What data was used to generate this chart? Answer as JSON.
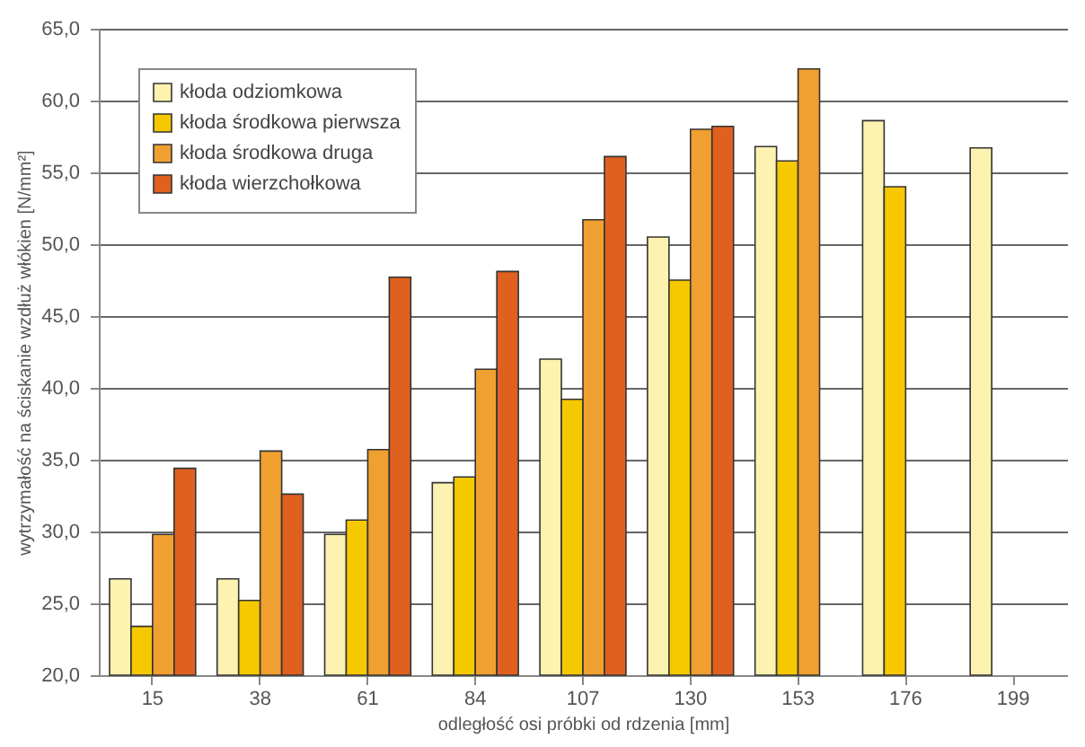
{
  "chart_data": {
    "type": "bar",
    "xlabel": "odległość osi próbki od rdzenia [mm]",
    "ylabel": "wytrzymałość na ściskanie wzdłuż włókien [N/mm²]",
    "categories": [
      "15",
      "38",
      "61",
      "84",
      "107",
      "130",
      "153",
      "176",
      "199"
    ],
    "series": [
      {
        "name": "kłoda odziomkowa",
        "color": "#fdf2b0",
        "values": [
          26.7,
          26.7,
          29.8,
          33.4,
          42.0,
          50.5,
          56.8,
          58.6,
          56.7
        ]
      },
      {
        "name": "kłoda środkowa pierwsza",
        "color": "#f5c800",
        "values": [
          23.4,
          25.2,
          30.8,
          33.8,
          39.2,
          47.5,
          55.8,
          54.0,
          null
        ]
      },
      {
        "name": "kłoda środkowa druga",
        "color": "#f0a030",
        "values": [
          29.8,
          35.6,
          35.7,
          41.3,
          51.7,
          58.0,
          62.2,
          null,
          null
        ]
      },
      {
        "name": "kłoda wierzchołkowa",
        "color": "#e06020",
        "values": [
          34.4,
          32.6,
          47.7,
          48.1,
          56.1,
          58.2,
          null,
          null,
          null
        ]
      }
    ],
    "ylim": [
      20,
      65
    ],
    "yticks": [
      {
        "value": 20,
        "label": "20,0"
      },
      {
        "value": 25,
        "label": "25,0"
      },
      {
        "value": 30,
        "label": "30,0"
      },
      {
        "value": 35,
        "label": "35,0"
      },
      {
        "value": 40,
        "label": "40,0"
      },
      {
        "value": 45,
        "label": "45,0"
      },
      {
        "value": 50,
        "label": "50,0"
      },
      {
        "value": 55,
        "label": "55,0"
      },
      {
        "value": 60,
        "label": "60,0"
      },
      {
        "value": 65,
        "label": "65,0"
      }
    ],
    "grid": "y",
    "legend": "top left"
  }
}
